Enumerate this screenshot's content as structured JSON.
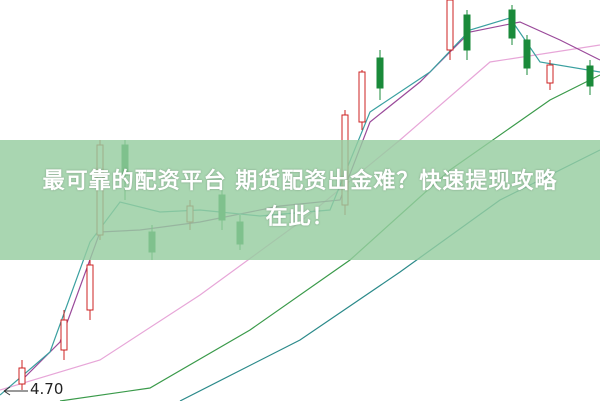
{
  "banner": {
    "lines": [
      "最可靠的配资平台 期货配资出金难？快速提现攻略",
      "在此！"
    ]
  },
  "price_label": "4.70"
}
